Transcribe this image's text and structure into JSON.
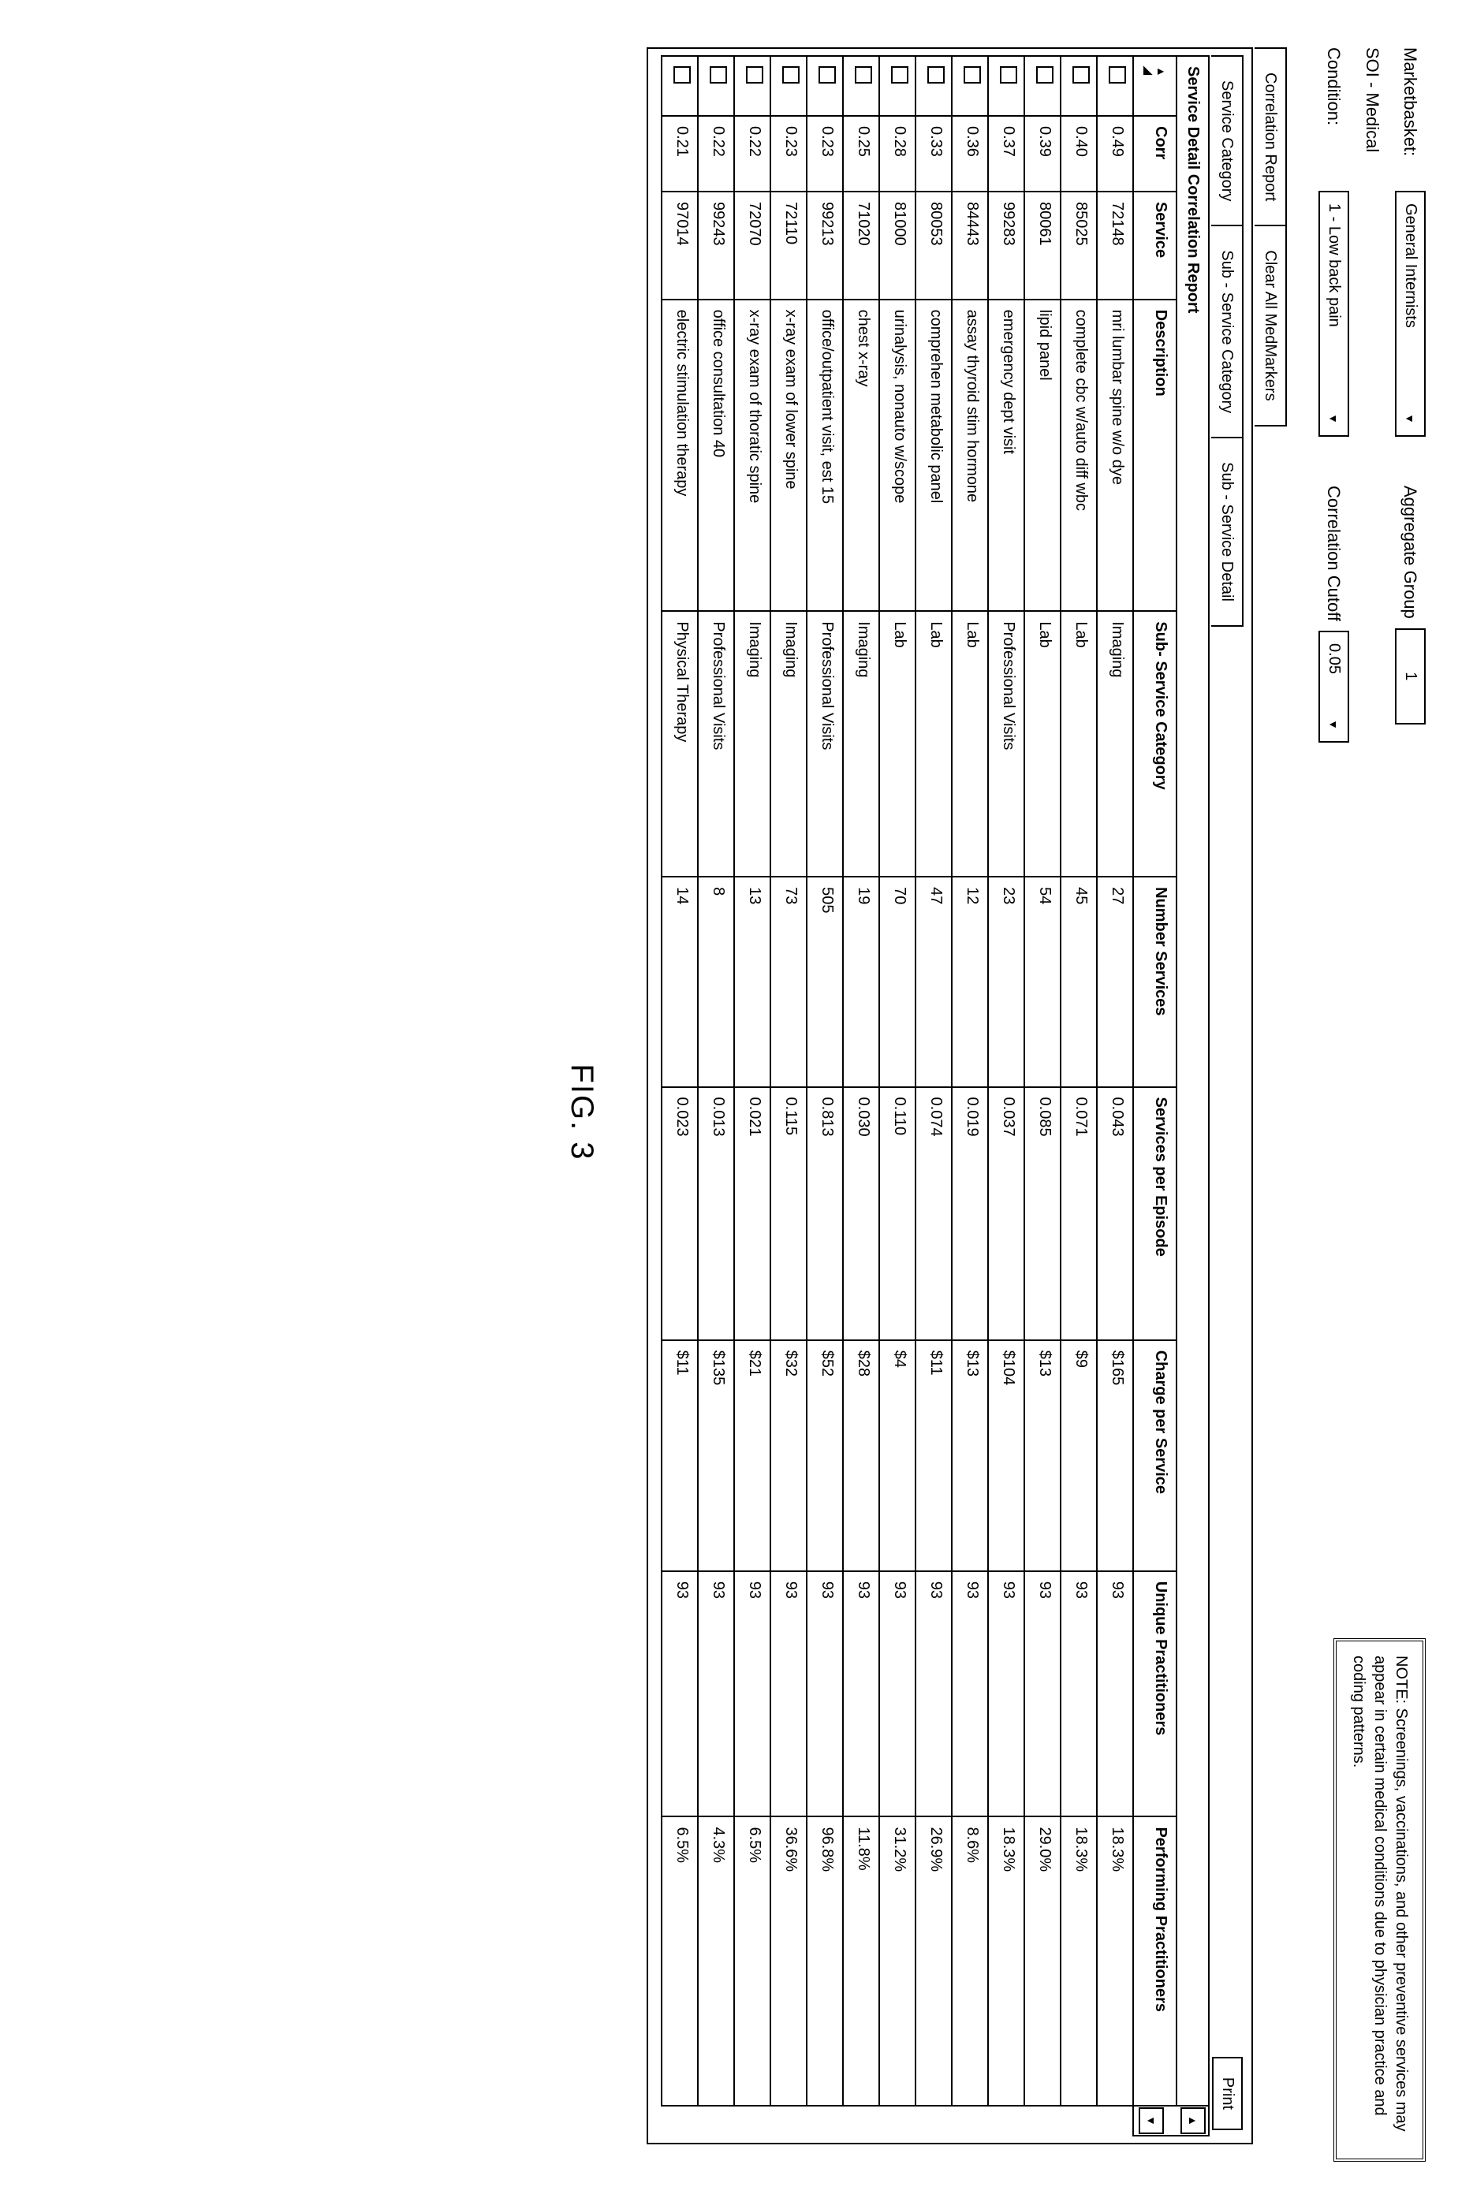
{
  "form": {
    "marketbasket_label": "Marketbasket:",
    "marketbasket_value": "General Internists",
    "aggregate_label": "Aggregate Group",
    "aggregate_value": "1",
    "soi_label": "SOI - Medical",
    "condition_label": "Condition:",
    "condition_value": "1 - Low back pain",
    "cutoff_label": "Correlation Cutoff",
    "cutoff_value": "0.05"
  },
  "note": "NOTE: Screenings, vaccinations, and other preventive services may appear in certain medical conditions due to physician practice and coding patterns.",
  "outer_tabs": {
    "tab1": "Correlation Report",
    "tab2": "Clear All MedMarkers"
  },
  "inner_tabs": {
    "tab1": "Service Category",
    "tab2": "Sub - Service Category",
    "tab3": "Sub - Service Detail"
  },
  "print_label": "Print",
  "report": {
    "title": "Service Detail Correlation Report",
    "columns": {
      "corr": "Corr",
      "service": "Service",
      "description": "Description",
      "subservice": "Sub- Service Category",
      "numservices": "Number Services",
      "perepisode": "Services per Episode",
      "charge": "Charge per Service",
      "unique": "Unique Practitioners",
      "performing": "Performing Practitioners"
    },
    "rows": [
      {
        "corr": "0.49",
        "service": "72148",
        "desc": "mri lumbar spine w/o dye",
        "sub": "Imaging",
        "num": "27",
        "per": "0.043",
        "charge": "$165",
        "unique": "93",
        "perf": "18.3%"
      },
      {
        "corr": "0.40",
        "service": "85025",
        "desc": "complete cbc w/auto diff wbc",
        "sub": "Lab",
        "num": "45",
        "per": "0.071",
        "charge": "$9",
        "unique": "93",
        "perf": "18.3%"
      },
      {
        "corr": "0.39",
        "service": "80061",
        "desc": "lipid panel",
        "sub": "Lab",
        "num": "54",
        "per": "0.085",
        "charge": "$13",
        "unique": "93",
        "perf": "29.0%"
      },
      {
        "corr": "0.37",
        "service": "99283",
        "desc": "emergency dept visit",
        "sub": "Professional Visits",
        "num": "23",
        "per": "0.037",
        "charge": "$104",
        "unique": "93",
        "perf": "18.3%"
      },
      {
        "corr": "0.36",
        "service": "84443",
        "desc": "assay thyroid stim hormone",
        "sub": "Lab",
        "num": "12",
        "per": "0.019",
        "charge": "$13",
        "unique": "93",
        "perf": "8.6%"
      },
      {
        "corr": "0.33",
        "service": "80053",
        "desc": "comprehen metabolic panel",
        "sub": "Lab",
        "num": "47",
        "per": "0.074",
        "charge": "$11",
        "unique": "93",
        "perf": "26.9%"
      },
      {
        "corr": "0.28",
        "service": "81000",
        "desc": "urinalysis, nonauto w/scope",
        "sub": "Lab",
        "num": "70",
        "per": "0.110",
        "charge": "$4",
        "unique": "93",
        "perf": "31.2%"
      },
      {
        "corr": "0.25",
        "service": "71020",
        "desc": "chest x-ray",
        "sub": "Imaging",
        "num": "19",
        "per": "0.030",
        "charge": "$28",
        "unique": "93",
        "perf": "11.8%"
      },
      {
        "corr": "0.23",
        "service": "99213",
        "desc": "office/outpatient visit, est 15",
        "sub": "Professional Visits",
        "num": "505",
        "per": "0.813",
        "charge": "$52",
        "unique": "93",
        "perf": "96.8%"
      },
      {
        "corr": "0.23",
        "service": "72110",
        "desc": "x-ray exam of lower spine",
        "sub": "Imaging",
        "num": "73",
        "per": "0.115",
        "charge": "$32",
        "unique": "93",
        "perf": "36.6%"
      },
      {
        "corr": "0.22",
        "service": "72070",
        "desc": "x-ray exam of thoratic spine",
        "sub": "Imaging",
        "num": "13",
        "per": "0.021",
        "charge": "$21",
        "unique": "93",
        "perf": "6.5%"
      },
      {
        "corr": "0.22",
        "service": "99243",
        "desc": "office consultation 40",
        "sub": "Professional Visits",
        "num": "8",
        "per": "0.013",
        "charge": "$135",
        "unique": "93",
        "perf": "4.3%"
      },
      {
        "corr": "0.21",
        "service": "97014",
        "desc": "electric stimulation therapy",
        "sub": "Physical Therapy",
        "num": "14",
        "per": "0.023",
        "charge": "$11",
        "unique": "93",
        "perf": "6.5%"
      }
    ]
  },
  "figure_label": "FIG. 3",
  "scroll": {
    "up": "▲",
    "down": "▼"
  }
}
